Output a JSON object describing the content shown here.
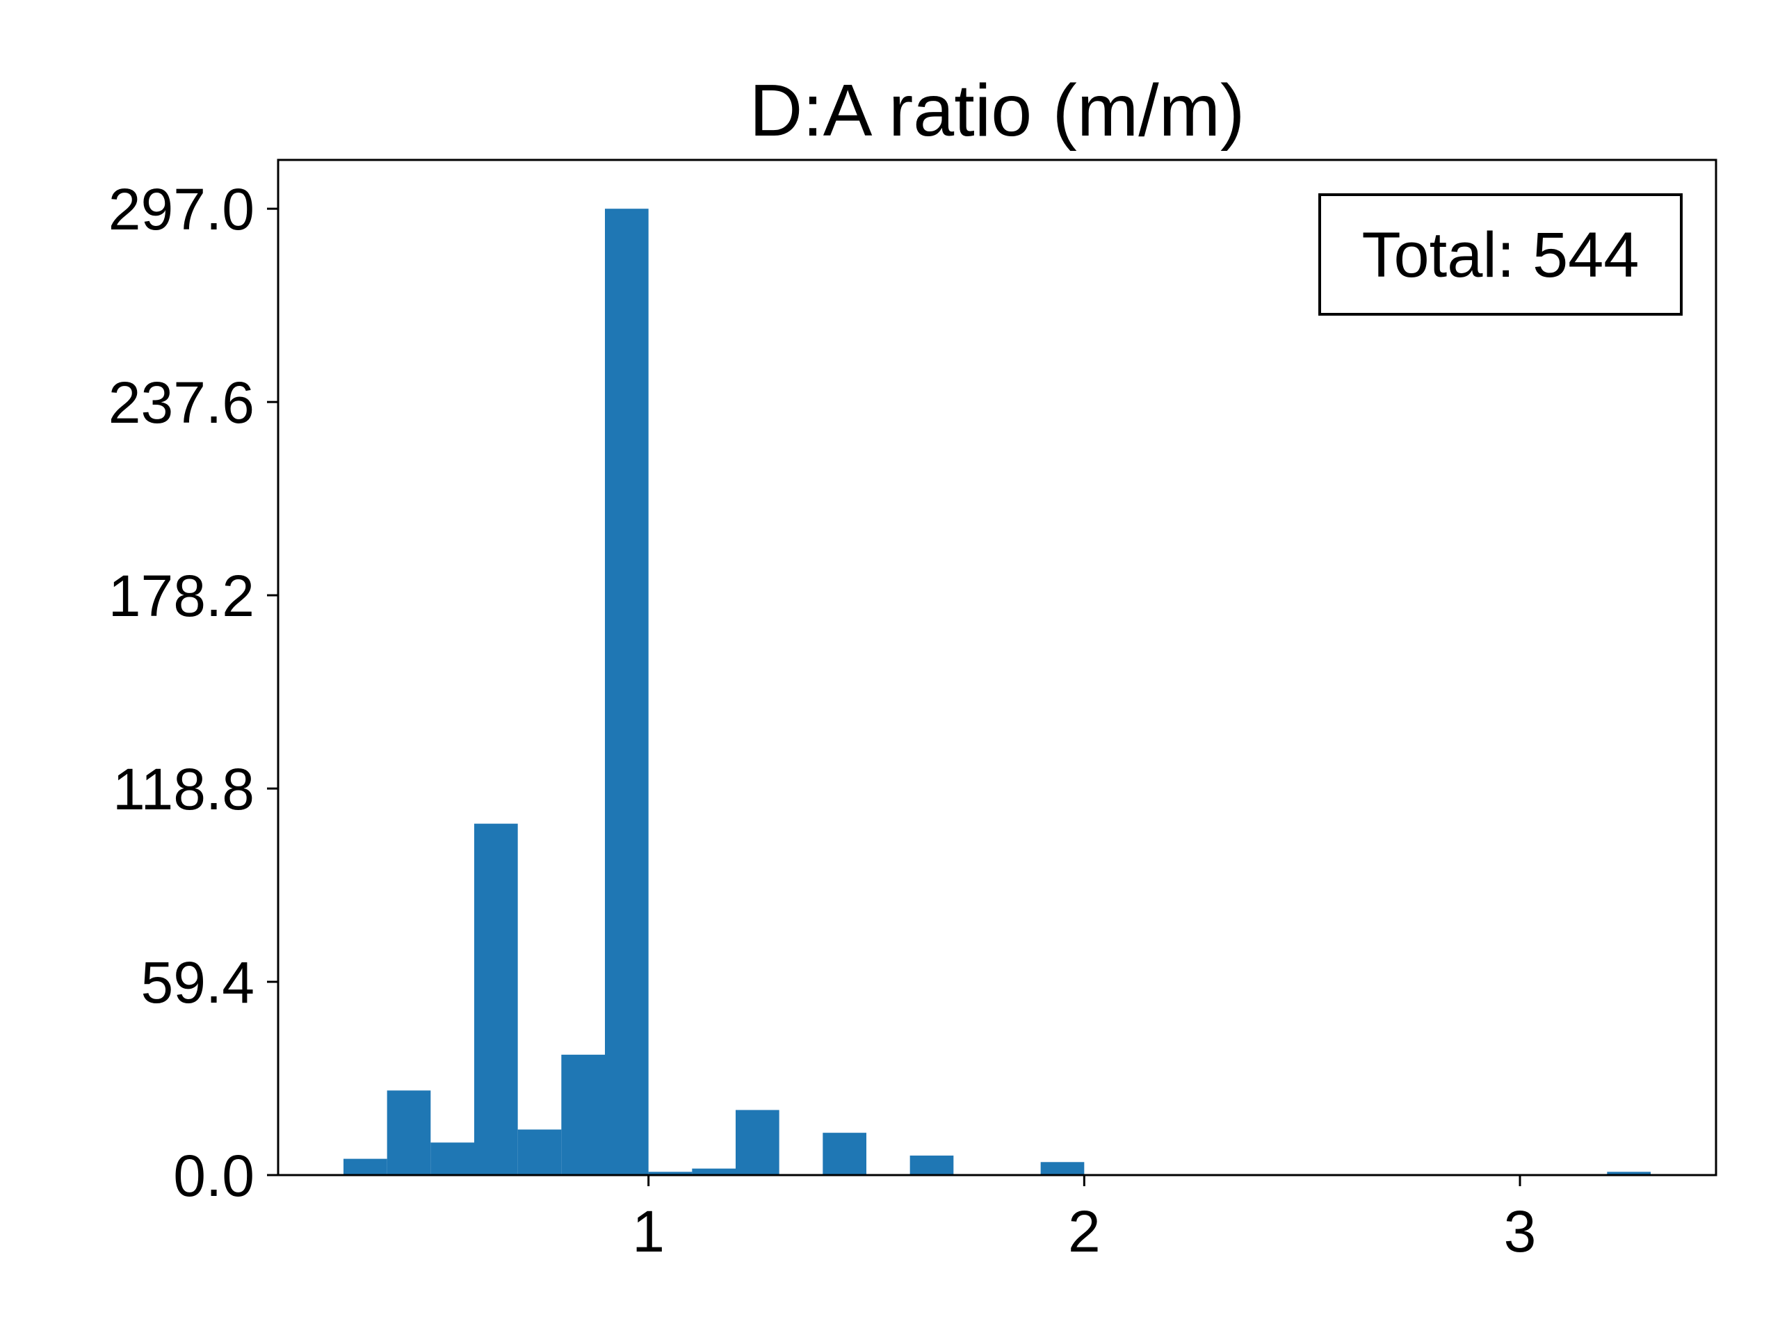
{
  "chart_data": {
    "type": "bar",
    "title": "D:A ratio (m/m)",
    "annotation": "Total: 544",
    "annotation_placement": "top-right",
    "xlim": [
      0.15,
      3.45
    ],
    "ylim": [
      0,
      312
    ],
    "x_ticks": [
      {
        "value": 1,
        "label": "1"
      },
      {
        "value": 2,
        "label": "2"
      },
      {
        "value": 3,
        "label": "3"
      }
    ],
    "y_ticks": [
      {
        "value": 0.0,
        "label": "0.0"
      },
      {
        "value": 59.4,
        "label": "59.4"
      },
      {
        "value": 118.8,
        "label": "118.8"
      },
      {
        "value": 178.2,
        "label": "178.2"
      },
      {
        "value": 237.6,
        "label": "237.6"
      },
      {
        "value": 297.0,
        "label": "297.0"
      }
    ],
    "bin_width": 0.1,
    "bins": [
      {
        "x": 0.3,
        "count": 5
      },
      {
        "x": 0.4,
        "count": 26
      },
      {
        "x": 0.5,
        "count": 10
      },
      {
        "x": 0.6,
        "count": 108
      },
      {
        "x": 0.7,
        "count": 14
      },
      {
        "x": 0.8,
        "count": 37
      },
      {
        "x": 0.9,
        "count": 297
      },
      {
        "x": 1.0,
        "count": 1
      },
      {
        "x": 1.1,
        "count": 2
      },
      {
        "x": 1.2,
        "count": 20
      },
      {
        "x": 1.4,
        "count": 13
      },
      {
        "x": 1.6,
        "count": 6
      },
      {
        "x": 1.9,
        "count": 4
      },
      {
        "x": 3.2,
        "count": 1
      }
    ],
    "bar_color": "#1f77b4",
    "grid": false,
    "legend": "none"
  }
}
